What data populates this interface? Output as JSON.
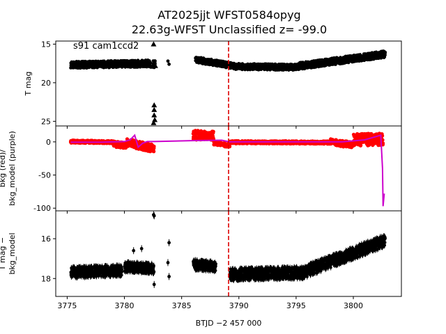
{
  "header": {
    "title_line1": "AT2025jjt  WFST0584opyg",
    "title_line2": "22.63g-WFST Unclassified z= -99.0"
  },
  "colors": {
    "mag_points": "#000000",
    "bkg_points": "#ff0000",
    "bkg_model": "#cc00cc",
    "event_marker": "#dd0000"
  },
  "chart_data": {
    "type": "scatter",
    "xlabel": "BTJD −2 457 000",
    "xlim": [
      3774.0,
      3804.2
    ],
    "x_ticks": [
      3775,
      3780,
      3785,
      3790,
      3795,
      3800
    ],
    "event_time": 3789.1,
    "panels": [
      {
        "id": "tmag",
        "ylabel": "T mag",
        "ylim": [
          14.6,
          25.6
        ],
        "y_inverted": true,
        "y_ticks": [
          15,
          20,
          25
        ],
        "annotation": "s91 cam1ccd2",
        "series": [
          {
            "marker": "circle",
            "segments": [
              {
                "x0": 3775.3,
                "x1": 3782.3,
                "y0": 17.7,
                "y1": 17.5,
                "spread": 0.9
              },
              {
                "x0": 3782.5,
                "x1": 3782.7,
                "y0": 17.6,
                "y1": 17.6,
                "spread": 0.9
              },
              {
                "x0": 3786.2,
                "x1": 3789.8,
                "y0": 17.0,
                "y1": 17.9,
                "spread": 0.8
              },
              {
                "x0": 3789.8,
                "x1": 3795.0,
                "y0": 17.9,
                "y1": 18.0,
                "spread": 0.8
              },
              {
                "x0": 3795.0,
                "x1": 3802.8,
                "y0": 17.9,
                "y1": 16.3,
                "spread": 0.9
              }
            ],
            "isolated": [
              {
                "x": 3783.8,
                "y": 17.2
              },
              {
                "x": 3783.9,
                "y": 17.6
              },
              {
                "x": 3776.2,
                "y": 17.4
              }
            ]
          },
          {
            "marker": "triangle",
            "points": [
              {
                "x": 3782.55,
                "y": 15.0
              },
              {
                "x": 3782.6,
                "y": 23.5
              },
              {
                "x": 3782.6,
                "y": 24.2
              },
              {
                "x": 3782.65,
                "y": 24.8
              },
              {
                "x": 3782.55,
                "y": 25.2
              },
              {
                "x": 3782.6,
                "y": 22.9
              },
              {
                "x": 3782.7,
                "y": 17.8
              },
              {
                "x": 3781.0,
                "y": 17.9
              },
              {
                "x": 3781.2,
                "y": 17.8
              },
              {
                "x": 3782.45,
                "y": 17.9
              }
            ]
          }
        ]
      },
      {
        "id": "bkg",
        "ylabel_line1": "bkg (red)/",
        "ylabel_line2": "bkg_model (purple)",
        "ylim": [
          -104,
          24
        ],
        "y_inverted": false,
        "y_ticks": [
          0,
          -50,
          -100
        ],
        "points_segments": [
          {
            "x0": 3775.3,
            "x1": 3779.0,
            "y0": 0.5,
            "y1": -0.5,
            "spread": 4.0
          },
          {
            "x0": 3779.0,
            "x1": 3780.2,
            "y0": -3.0,
            "y1": -6.0,
            "spread": 9.0
          },
          {
            "x0": 3780.2,
            "x1": 3782.6,
            "y0": -1.0,
            "y1": -10.0,
            "spread": 12.0
          },
          {
            "x0": 3786.0,
            "x1": 3787.8,
            "y0": 10.0,
            "y1": 10.0,
            "spread": 14.0
          },
          {
            "x0": 3787.8,
            "x1": 3789.2,
            "y0": -2.0,
            "y1": -5.0,
            "spread": 6.0
          },
          {
            "x0": 3789.2,
            "x1": 3798.0,
            "y0": -0.5,
            "y1": -1.0,
            "spread": 4.0
          },
          {
            "x0": 3798.0,
            "x1": 3800.0,
            "y0": 0.0,
            "y1": -5.0,
            "spread": 9.0
          },
          {
            "x0": 3800.0,
            "x1": 3802.6,
            "y0": 3.0,
            "y1": 4.0,
            "spread": 18.0
          }
        ],
        "model": {
          "x": [
            3775.3,
            3778.0,
            3780.0,
            3780.5,
            3780.9,
            3781.2,
            3781.6,
            3782.0,
            3782.6,
            3786.2,
            3788.5,
            3789.2,
            3795.0,
            3799.0,
            3801.0,
            3802.4,
            3802.55,
            3802.6,
            3802.7
          ],
          "y": [
            -0.5,
            -0.5,
            0.5,
            3.0,
            10.0,
            -8.0,
            -2.0,
            0.5,
            0.5,
            2.0,
            2.5,
            0.0,
            0.0,
            0.0,
            3.0,
            10.0,
            -40.0,
            -97.0,
            -78.0
          ]
        }
      },
      {
        "id": "corrected",
        "ylabel_line1": "T mag −",
        "ylabel_line2": "bkg_model",
        "ylim": [
          14.6,
          18.9
        ],
        "y_inverted": true,
        "y_ticks": [
          16,
          18
        ],
        "segments": [
          {
            "x0": 3775.3,
            "x1": 3779.8,
            "y0": 17.7,
            "y1": 17.6,
            "spread": 0.55
          },
          {
            "x0": 3780.0,
            "x1": 3782.6,
            "y0": 17.4,
            "y1": 17.5,
            "spread": 0.5
          },
          {
            "x0": 3786.0,
            "x1": 3788.0,
            "y0": 17.3,
            "y1": 17.4,
            "spread": 0.5
          },
          {
            "x0": 3789.2,
            "x1": 3796.0,
            "y0": 17.8,
            "y1": 17.7,
            "spread": 0.6
          },
          {
            "x0": 3796.0,
            "x1": 3802.8,
            "y0": 17.6,
            "y1": 16.1,
            "spread": 0.6
          }
        ],
        "isolated": [
          {
            "x": 3782.55,
            "y": 14.8
          },
          {
            "x": 3782.6,
            "y": 14.85
          },
          {
            "x": 3780.8,
            "y": 16.6
          },
          {
            "x": 3781.5,
            "y": 16.5
          },
          {
            "x": 3783.9,
            "y": 16.2
          },
          {
            "x": 3783.8,
            "y": 17.2
          },
          {
            "x": 3783.9,
            "y": 17.9
          },
          {
            "x": 3782.6,
            "y": 18.3
          }
        ]
      }
    ]
  }
}
